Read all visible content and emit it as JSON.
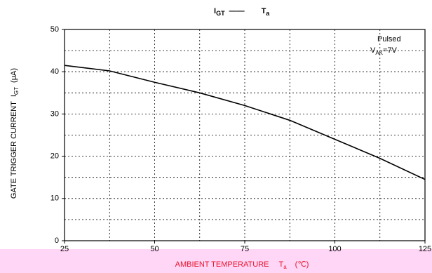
{
  "chart_data": {
    "type": "line",
    "title": {
      "left": "I",
      "left_sub": "GT",
      "dash": "——",
      "right": "T",
      "right_sub": "a"
    },
    "annotation": {
      "line1": "Pulsed",
      "v": "V",
      "v_sub": "AK",
      "v_rest": "=7V"
    },
    "y_label": {
      "main": "GATE TRIGGER CURRENT",
      "sym": "I",
      "sym_sub": "GT",
      "unit": "(μA)"
    },
    "x_label": {
      "main": "AMBIENT TEMPERATURE",
      "sym": "T",
      "sym_sub": "a",
      "unit": "(℃)"
    },
    "x": [
      25,
      37.5,
      50,
      62.5,
      75,
      87.5,
      100,
      112.5,
      125
    ],
    "series": [
      {
        "color": "#000000",
        "values": [
          41.5,
          40.2,
          37.5,
          35,
          32,
          28.5,
          24,
          19.5,
          14.5
        ]
      }
    ],
    "xlim": [
      25,
      125
    ],
    "xticks": [
      25,
      50,
      75,
      100,
      125
    ],
    "xgrid": [
      37.5,
      50,
      62.5,
      75,
      87.5,
      100,
      112.5
    ],
    "ylim": [
      0,
      50
    ],
    "yticks": [
      0,
      10,
      20,
      30,
      40,
      50
    ],
    "ygrid": [
      5,
      10,
      15,
      20,
      25,
      30,
      35,
      40,
      45
    ],
    "grid": true
  }
}
